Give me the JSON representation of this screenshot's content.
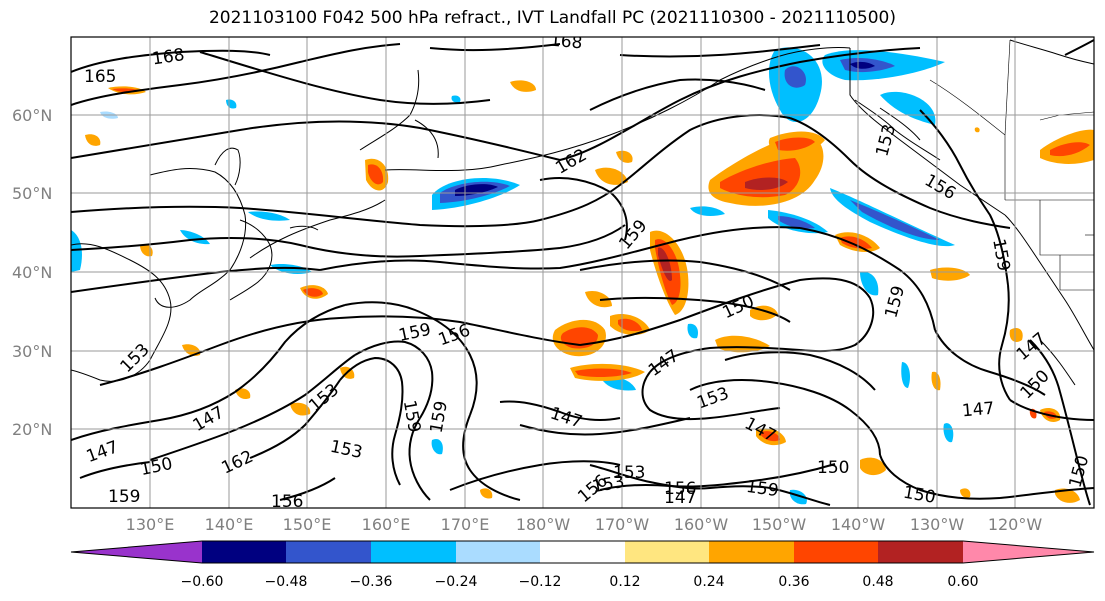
{
  "title": "2021103100 F042 500 hPa refract., IVT Landfall PC (2021110300 - 2021110500)",
  "map": {
    "lat_ticks": [
      "60°N",
      "50°N",
      "40°N",
      "30°N",
      "20°N"
    ],
    "lon_ticks": [
      "130°E",
      "140°E",
      "150°E",
      "160°E",
      "170°E",
      "180°W",
      "170°W",
      "160°W",
      "150°W",
      "140°W",
      "130°W",
      "120°W"
    ],
    "contour_labels": [
      "168",
      "165",
      "168",
      "162",
      "159",
      "153",
      "156",
      "159",
      "150",
      "159",
      "156",
      "159",
      "153",
      "147",
      "153",
      "150",
      "147",
      "153",
      "147",
      "153",
      "150",
      "159",
      "147",
      "150",
      "147",
      "162",
      "150",
      "159",
      "153",
      "156",
      "147",
      "159",
      "147",
      "156",
      "159",
      "150",
      "153",
      "156",
      "147"
    ],
    "colors": {
      "strong_negative": "#9933cc",
      "negative_navy": "#000080",
      "negative_blue": "#3355cc",
      "negative_cyan": "#00bfff",
      "negative_light": "#aadcff",
      "neutral": "#ffffff",
      "positive_yellow": "#ffe680",
      "positive_orange": "#ffa500",
      "positive_red": "#ff4500",
      "positive_darkred": "#b22222",
      "strong_positive": "#ff88aa"
    }
  },
  "colorbar": {
    "ticks": [
      "−0.60",
      "−0.48",
      "−0.36",
      "−0.24",
      "−0.12",
      "0.12",
      "0.24",
      "0.36",
      "0.48",
      "0.60"
    ],
    "segment_colors": [
      "#9933cc",
      "#000080",
      "#3355cc",
      "#00bfff",
      "#aadcff",
      "#ffffff",
      "#ffe680",
      "#ffa500",
      "#ff4500",
      "#b22222",
      "#ff88aa"
    ]
  }
}
